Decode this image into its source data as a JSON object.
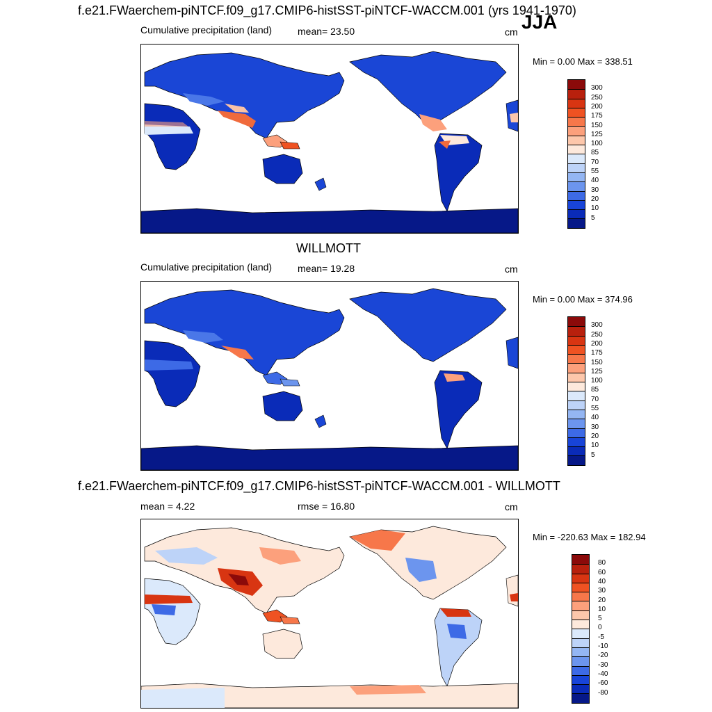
{
  "season": "JJA",
  "panels": [
    {
      "title": "f.e21.FWaerchem-piNTCF.f09_g17.CMIP6-histSST-piNTCF-WACCM.001 (yrs 1941-1970)",
      "left_label": "Cumulative precipitation (land)",
      "center_label": "mean=  23.50",
      "units": "cm",
      "minmax": "Min =   0.00 Max = 338.51"
    },
    {
      "title": "WILLMOTT",
      "left_label": "Cumulative precipitation (land)",
      "center_label": "mean=  19.28",
      "units": "cm",
      "minmax": "Min =   0.00 Max = 374.96"
    },
    {
      "title": "f.e21.FWaerchem-piNTCF.f09_g17.CMIP6-histSST-piNTCF-WACCM.001 - WILLMOTT",
      "left_label": "mean =   4.22",
      "center_label": "rmse =  16.80",
      "units": "cm",
      "minmax": "Min = -220.63 Max = 182.94"
    }
  ],
  "precip_colorbar": {
    "labels": [
      "300",
      "250",
      "200",
      "175",
      "150",
      "125",
      "100",
      "85",
      "70",
      "55",
      "40",
      "30",
      "20",
      "10",
      "5"
    ],
    "colors": [
      "#8b0a0a",
      "#b8200d",
      "#d83512",
      "#ef5222",
      "#f7774a",
      "#fca07c",
      "#fdc7ab",
      "#fde9dc",
      "#dbe9fb",
      "#bdd3f8",
      "#94b6f3",
      "#6c95ee",
      "#3d6ae6",
      "#1844d8",
      "#0a2bb8",
      "#061888"
    ]
  },
  "diff_colorbar": {
    "labels": [
      "80",
      "60",
      "40",
      "30",
      "20",
      "10",
      "5",
      "0",
      "-5",
      "-10",
      "-20",
      "-30",
      "-40",
      "-60",
      "-80"
    ],
    "colors": [
      "#8b0a0a",
      "#b8200d",
      "#d83512",
      "#ef5222",
      "#f7774a",
      "#fca07c",
      "#fdc7ab",
      "#fde9dc",
      "#dbe9fb",
      "#bdd3f8",
      "#94b6f3",
      "#6c95ee",
      "#3d6ae6",
      "#1844d8",
      "#0a2bb8",
      "#061888"
    ]
  }
}
